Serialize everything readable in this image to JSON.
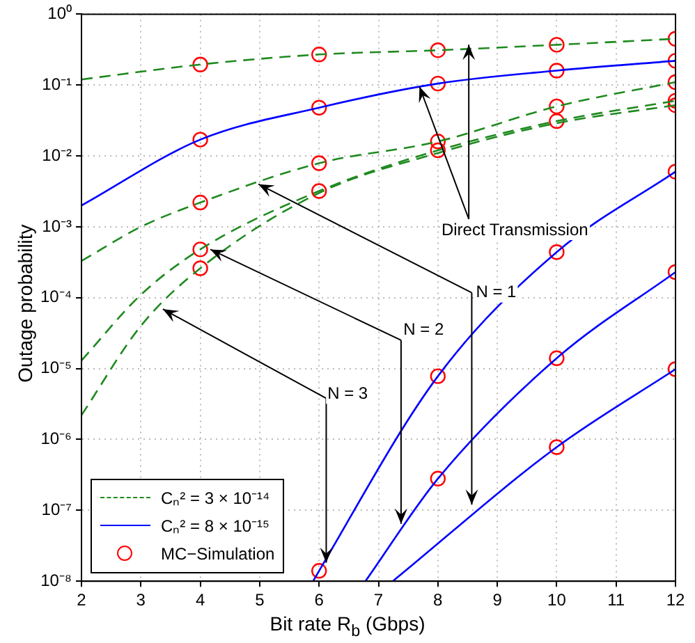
{
  "chart_data": {
    "type": "line",
    "xlabel": "Bit rate R$_{b}$ (Gbps)",
    "ylabel": "Outage probability",
    "xlim": [
      2,
      12
    ],
    "xticks": [
      2,
      3,
      4,
      5,
      6,
      7,
      8,
      9,
      10,
      11,
      12
    ],
    "ylim": [
      1e-08,
      1
    ],
    "yticks": [
      {
        "value": 1e-08,
        "label": "10⁻⁸"
      },
      {
        "value": 1e-07,
        "label": "10⁻⁷"
      },
      {
        "value": 1e-06,
        "label": "10⁻⁶"
      },
      {
        "value": 1e-05,
        "label": "10⁻⁵"
      },
      {
        "value": 0.0001,
        "label": "10⁻⁴"
      },
      {
        "value": 0.001,
        "label": "10⁻³"
      },
      {
        "value": 0.01,
        "label": "10⁻²"
      },
      {
        "value": 0.1,
        "label": "10⁻¹"
      },
      {
        "value": 1,
        "label": "10⁰"
      }
    ],
    "log": "y",
    "grid": true,
    "legend": "bottom left",
    "marker": "none",
    "series": [
      {
        "name": "Cₙ² = 3 × 10⁻¹⁴",
        "color": "#1f8a1f",
        "line_style": "dashed",
        "x": [
          2,
          4,
          6,
          8,
          10,
          12
        ],
        "values": [
          0.12,
          0.195,
          0.27,
          0.31,
          0.37,
          0.45
        ]
      },
      {
        "color": "#1f8a1f",
        "line_style": "dashed",
        "x": [
          2,
          3,
          4,
          6,
          8,
          10,
          12
        ],
        "values": [
          0.00033,
          0.001,
          0.0022,
          0.0079,
          0.016,
          0.05,
          0.11
        ]
      },
      {
        "color": "#1f8a1f",
        "line_style": "dashed",
        "x": [
          2,
          3,
          4,
          6,
          8,
          10,
          12
        ],
        "values": [
          1.3e-05,
          0.00011,
          0.00048,
          0.0032,
          0.012,
          0.031,
          0.06
        ]
      },
      {
        "color": "#1f8a1f",
        "line_style": "dashed",
        "x": [
          2,
          3,
          4,
          6,
          8,
          10,
          12
        ],
        "values": [
          2.2e-06,
          4e-05,
          0.00026,
          0.003,
          0.011,
          0.029,
          0.052
        ]
      },
      {
        "name": "Cₙ² = 8 × 10⁻¹⁵",
        "color": "#0000ff",
        "line_style": "solid",
        "x": [
          2,
          4,
          6,
          8,
          10,
          12
        ],
        "values": [
          0.002,
          0.017,
          0.048,
          0.105,
          0.16,
          0.22
        ]
      },
      {
        "color": "#0000ff",
        "line_style": "solid",
        "x": [
          5.9,
          6,
          8,
          10,
          12
        ],
        "values": [
          1e-08,
          1.4e-08,
          7.8e-06,
          0.00044,
          0.006
        ]
      },
      {
        "color": "#0000ff",
        "line_style": "solid",
        "x": [
          6.78,
          8,
          10,
          12
        ],
        "values": [
          1e-08,
          2.8e-07,
          1.4e-05,
          0.00023
        ]
      },
      {
        "color": "#0000ff",
        "line_style": "solid",
        "x": [
          7.24,
          10,
          12
        ],
        "values": [
          1e-08,
          7.8e-07,
          9.8e-06
        ]
      },
      {
        "name": "MC−Simulation",
        "type": "scatter",
        "marker": "circle",
        "color": "#ff0000",
        "x": [
          4,
          4,
          4,
          4,
          4,
          6,
          6,
          6,
          6,
          6,
          8,
          8,
          8,
          8,
          8,
          8,
          10,
          10,
          10,
          10,
          10,
          10,
          10,
          12,
          12,
          12,
          12,
          12,
          12,
          12,
          12
        ],
        "values": [
          0.195,
          0.017,
          0.0022,
          0.00048,
          0.00026,
          0.27,
          0.048,
          0.0079,
          0.0032,
          1.4e-08,
          0.31,
          0.105,
          0.016,
          0.012,
          7.8e-06,
          2.8e-07,
          0.37,
          0.16,
          0.05,
          0.031,
          0.00044,
          1.4e-05,
          7.8e-07,
          0.45,
          0.22,
          0.11,
          0.06,
          0.052,
          0.006,
          0.00023,
          9.8e-06
        ]
      }
    ],
    "annotations": [
      {
        "text": "Direct Transmission",
        "x": 7.69,
        "y": 0.095
      },
      {
        "text": "N = 1",
        "x": 4.98,
        "y": 0.004
      },
      {
        "text": "N = 2",
        "x": 4.17,
        "y": 0.00048
      },
      {
        "text": "N = 3",
        "x": 3.37,
        "y": 6.9e-05
      }
    ]
  }
}
